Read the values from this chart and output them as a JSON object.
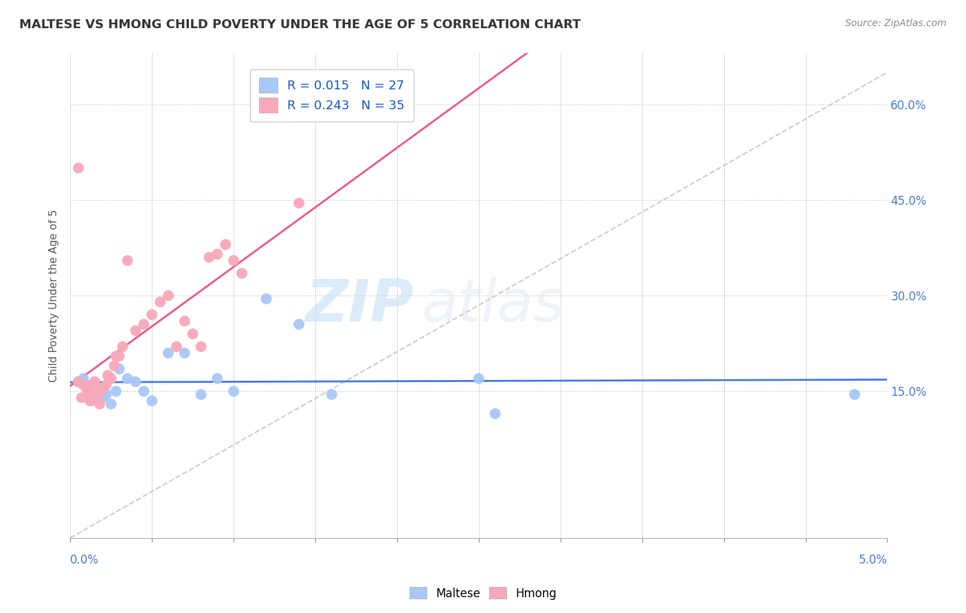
{
  "title": "MALTESE VS HMONG CHILD POVERTY UNDER THE AGE OF 5 CORRELATION CHART",
  "source": "Source: ZipAtlas.com",
  "ylabel": "Child Poverty Under the Age of 5",
  "xlim": [
    0.0,
    5.0
  ],
  "ylim": [
    -8.0,
    68.0
  ],
  "yticks": [
    15.0,
    30.0,
    45.0,
    60.0
  ],
  "legend_r_maltese": "R = 0.015",
  "legend_n_maltese": "N = 27",
  "legend_r_hmong": "R = 0.243",
  "legend_n_hmong": "N = 35",
  "maltese_color": "#a8c8f8",
  "hmong_color": "#f8a8b8",
  "maltese_line_color": "#4477dd",
  "hmong_line_color": "#ee5588",
  "diagonal_color": "#cccccc",
  "background_color": "#ffffff",
  "watermark_zip": "ZIP",
  "watermark_atlas": "atlas",
  "maltese_x": [
    0.05,
    0.08,
    0.1,
    0.12,
    0.13,
    0.15,
    0.18,
    0.2,
    0.22,
    0.25,
    0.28,
    0.3,
    0.35,
    0.4,
    0.45,
    0.5,
    0.6,
    0.7,
    0.8,
    0.9,
    1.0,
    1.2,
    1.4,
    1.6,
    2.5,
    2.6,
    4.8
  ],
  "maltese_y": [
    16.5,
    17.0,
    16.0,
    14.5,
    13.5,
    14.0,
    15.5,
    14.0,
    14.5,
    13.0,
    15.0,
    18.5,
    17.0,
    16.5,
    15.0,
    13.5,
    21.0,
    21.0,
    14.5,
    17.0,
    15.0,
    29.5,
    25.5,
    14.5,
    17.0,
    11.5,
    14.5
  ],
  "hmong_x": [
    0.05,
    0.07,
    0.08,
    0.1,
    0.11,
    0.12,
    0.14,
    0.15,
    0.17,
    0.18,
    0.2,
    0.22,
    0.23,
    0.25,
    0.27,
    0.28,
    0.3,
    0.32,
    0.35,
    0.4,
    0.45,
    0.5,
    0.55,
    0.6,
    0.65,
    0.7,
    0.75,
    0.8,
    0.85,
    0.9,
    0.95,
    1.0,
    1.05,
    1.4,
    0.05
  ],
  "hmong_y": [
    16.5,
    14.0,
    16.0,
    15.5,
    15.0,
    13.5,
    16.0,
    16.5,
    14.5,
    13.0,
    15.5,
    16.0,
    17.5,
    17.0,
    19.0,
    20.5,
    20.5,
    22.0,
    35.5,
    24.5,
    25.5,
    27.0,
    29.0,
    30.0,
    22.0,
    26.0,
    24.0,
    22.0,
    36.0,
    36.5,
    38.0,
    35.5,
    33.5,
    44.5,
    50.0
  ]
}
